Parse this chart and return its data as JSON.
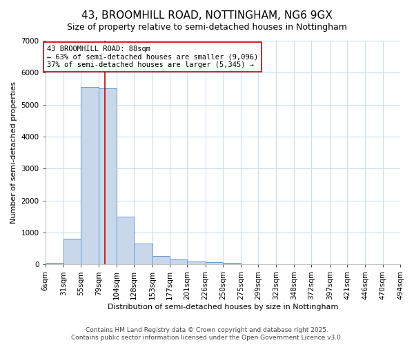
{
  "title1": "43, BROOMHILL ROAD, NOTTINGHAM, NG6 9GX",
  "title2": "Size of property relative to semi-detached houses in Nottingham",
  "xlabel": "Distribution of semi-detached houses by size in Nottingham",
  "ylabel": "Number of semi-detached properties",
  "bin_edges": [
    6,
    31,
    55,
    79,
    104,
    128,
    153,
    177,
    201,
    226,
    250,
    275,
    299,
    323,
    348,
    372,
    397,
    421,
    446,
    470,
    494
  ],
  "bar_heights": [
    50,
    800,
    5550,
    5500,
    1490,
    650,
    270,
    150,
    90,
    70,
    55,
    0,
    0,
    0,
    0,
    0,
    0,
    0,
    0,
    0
  ],
  "bar_color": "#c8d8ea",
  "bar_edge_color": "#6699cc",
  "property_size": 88,
  "property_line_color": "#cc0000",
  "annotation_text": "43 BROOMHILL ROAD: 88sqm\n← 63% of semi-detached houses are smaller (9,096)\n37% of semi-detached houses are larger (5,345) →",
  "annotation_box_color": "#ffffff",
  "annotation_box_edge_color": "#cc0000",
  "ylim": [
    0,
    7000
  ],
  "yticks": [
    0,
    1000,
    2000,
    3000,
    4000,
    5000,
    6000,
    7000
  ],
  "background_color": "#ffffff",
  "plot_bg_color": "#ffffff",
  "grid_color": "#ccddee",
  "footer1": "Contains HM Land Registry data © Crown copyright and database right 2025.",
  "footer2": "Contains public sector information licensed under the Open Government Licence v3.0.",
  "title1_fontsize": 11,
  "title2_fontsize": 9,
  "annotation_fontsize": 7.5,
  "footer_fontsize": 6.5,
  "axis_label_fontsize": 8,
  "tick_fontsize": 7.5
}
